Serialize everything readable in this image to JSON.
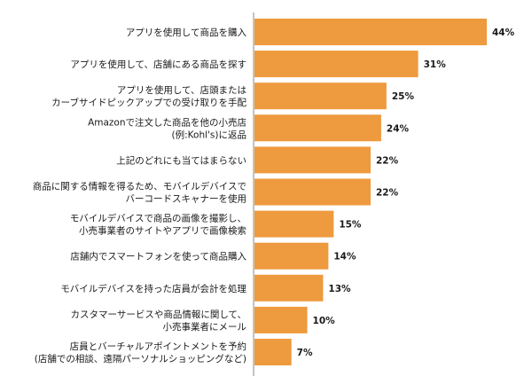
{
  "chart_data": {
    "type": "bar",
    "orientation": "horizontal",
    "bar_color": "#ee9a3e",
    "axis_color": "#8a8a8a",
    "value_suffix": "%",
    "categories": [
      [
        "アプリを使用して商品を購入"
      ],
      [
        "アプリを使用して、店舗にある商品を探す"
      ],
      [
        "アプリを使用して、店頭または",
        "カーブサイドピックアップでの受け取りを手配"
      ],
      [
        "Amazonで注文した商品を他の小売店",
        "(例:Kohl's)に返品"
      ],
      [
        "上記のどれにも当てはまらない"
      ],
      [
        "商品に関する情報を得るため、モバイルデバイスで",
        "バーコードスキャナーを使用"
      ],
      [
        "モバイルデバイスで商品の画像を撮影し、",
        "小売事業者のサイトやアプリで画像検索"
      ],
      [
        "店舗内でスマートフォンを使って商品購入"
      ],
      [
        "モバイルデバイスを持った店員が会計を処理"
      ],
      [
        "カスタマーサービスや商品情報に関して、",
        "小売事業者にメール"
      ],
      [
        "店員とバーチャルアポイントメントを予約",
        "(店舗での相談、遠隔パーソナルショッピングなど)"
      ]
    ],
    "values": [
      44,
      31,
      25,
      24,
      22,
      22,
      15,
      14,
      13,
      10,
      7
    ],
    "xlim": [
      0,
      44
    ]
  }
}
